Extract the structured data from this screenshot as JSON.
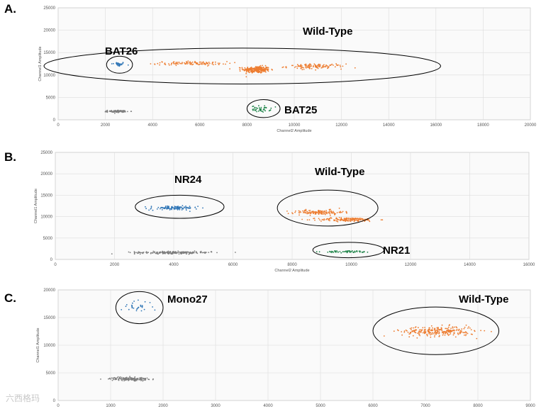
{
  "chart_data": [
    {
      "type": "scatter",
      "panel_label": "A.",
      "xlabel": "Channel2 Amplitude",
      "ylabel": "Channel1 Amplitude",
      "xlim": [
        0,
        20000
      ],
      "ylim": [
        0,
        25000
      ],
      "xticks": [
        0,
        2000,
        4000,
        6000,
        8000,
        10000,
        12000,
        14000,
        16000,
        18000,
        20000
      ],
      "yticks": [
        0,
        5000,
        10000,
        15000,
        20000,
        25000
      ],
      "grid": true,
      "clusters": [
        {
          "label": "BAT26",
          "color": "#2e75b6",
          "center": [
            2550,
            12400
          ],
          "spread": [
            150,
            250
          ],
          "count": 30
        },
        {
          "label": "Wild-Type",
          "color": "#ed7d31",
          "center": [
            8400,
            11200
          ],
          "spread": [
            280,
            380
          ],
          "count": 260
        },
        {
          "label": "Wild-Type",
          "color": "#ed7d31",
          "center": [
            5600,
            12600
          ],
          "spread": [
            800,
            200
          ],
          "count": 110
        },
        {
          "label": "Wild-Type",
          "color": "#ed7d31",
          "center": [
            10900,
            11900
          ],
          "spread": [
            600,
            280
          ],
          "count": 120
        },
        {
          "label": "BAT25",
          "color": "#1e8449",
          "center": [
            8600,
            2400
          ],
          "spread": [
            200,
            350
          ],
          "count": 45
        },
        {
          "label": "",
          "color": "#7f7f7f",
          "center": [
            2500,
            1900
          ],
          "spread": [
            200,
            120
          ],
          "count": 90
        }
      ],
      "annotations": [
        {
          "text": "BAT26",
          "ellipse": {
            "cx": 2600,
            "cy": 12300,
            "rx": 550,
            "ry": 1900
          }
        },
        {
          "text": "Wild-Type",
          "ellipse": {
            "cx": 7800,
            "cy": 12000,
            "rx": 8400,
            "ry": 4000
          }
        },
        {
          "text": "BAT25",
          "ellipse": {
            "cx": 8700,
            "cy": 2500,
            "rx": 700,
            "ry": 2000
          }
        }
      ]
    },
    {
      "type": "scatter",
      "panel_label": "B.",
      "xlabel": "Channel2 Amplitude",
      "ylabel": "Channel1 Amplitude",
      "xlim": [
        0,
        16000
      ],
      "ylim": [
        0,
        25000
      ],
      "xticks": [
        0,
        2000,
        4000,
        6000,
        8000,
        10000,
        12000,
        14000,
        16000
      ],
      "yticks": [
        0,
        5000,
        10000,
        15000,
        20000,
        25000
      ],
      "grid": true,
      "clusters": [
        {
          "label": "NR24",
          "color": "#2e75b6",
          "center": [
            4000,
            12000
          ],
          "spread": [
            400,
            250
          ],
          "count": 110
        },
        {
          "label": "Wild-Type",
          "color": "#ed7d31",
          "center": [
            8900,
            11000
          ],
          "spread": [
            420,
            280
          ],
          "count": 140
        },
        {
          "label": "Wild-Type",
          "color": "#ed7d31",
          "center": [
            9900,
            9300
          ],
          "spread": [
            500,
            230
          ],
          "count": 160
        },
        {
          "label": "NR21",
          "color": "#1e8449",
          "center": [
            9900,
            1800
          ],
          "spread": [
            400,
            120
          ],
          "count": 60
        },
        {
          "label": "",
          "color": "#7f7f7f",
          "center": [
            4000,
            1600
          ],
          "spread": [
            650,
            140
          ],
          "count": 220
        }
      ],
      "annotations": [
        {
          "text": "NR24",
          "ellipse": {
            "cx": 4200,
            "cy": 12300,
            "rx": 1500,
            "ry": 2700
          }
        },
        {
          "text": "Wild-Type",
          "ellipse": {
            "cx": 9200,
            "cy": 12000,
            "rx": 1700,
            "ry": 4200
          }
        },
        {
          "text": "NR21",
          "ellipse": {
            "cx": 9900,
            "cy": 2200,
            "rx": 1200,
            "ry": 1800
          }
        }
      ]
    },
    {
      "type": "scatter",
      "panel_label": "C.",
      "xlabel": "",
      "ylabel": "Channel1 Amplitude",
      "xlim": [
        0,
        9000
      ],
      "ylim": [
        0,
        20000
      ],
      "xticks": [
        0,
        1000,
        2000,
        3000,
        4000,
        5000,
        6000,
        7000,
        8000,
        9000
      ],
      "yticks": [
        0,
        5000,
        10000,
        15000,
        20000
      ],
      "grid": true,
      "clusters": [
        {
          "label": "Mono27",
          "color": "#2e75b6",
          "center": [
            1500,
            17000
          ],
          "spread": [
            150,
            500
          ],
          "count": 30
        },
        {
          "label": "Wild-Type",
          "color": "#ed7d31",
          "center": [
            7250,
            12500
          ],
          "spread": [
            350,
            450
          ],
          "count": 260
        },
        {
          "label": "",
          "color": "#7f7f7f",
          "center": [
            1350,
            3900
          ],
          "spread": [
            180,
            150
          ],
          "count": 160
        }
      ],
      "annotations": [
        {
          "text": "Mono27",
          "ellipse": {
            "cx": 1550,
            "cy": 16800,
            "rx": 450,
            "ry": 2900
          }
        },
        {
          "text": "Wild-Type",
          "ellipse": {
            "cx": 7200,
            "cy": 12600,
            "rx": 1200,
            "ry": 4300
          }
        }
      ]
    }
  ],
  "watermark": "六西格玛"
}
